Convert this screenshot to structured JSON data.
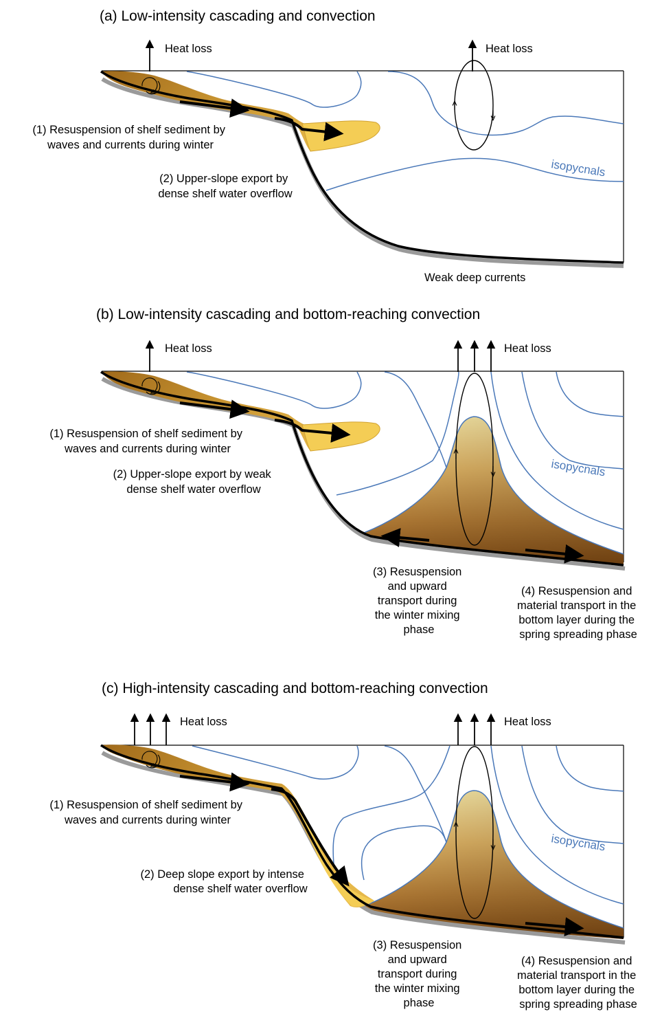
{
  "panels": [
    {
      "title": "(a) Low-intensity cascading and convection",
      "heat_loss_left": "Heat loss",
      "heat_loss_right": "Heat loss",
      "isopycnals": "isopycnals",
      "label1": [
        "(1) Resuspension of shelf sediment by",
        "waves and currents during winter"
      ],
      "label2": [
        "(2) Upper-slope export by",
        "dense shelf water overflow"
      ],
      "label_deep": "Weak deep currents"
    },
    {
      "title": "(b) Low-intensity cascading and bottom-reaching convection",
      "heat_loss_left": "Heat loss",
      "heat_loss_right": "Heat loss",
      "isopycnals": "isopycnals",
      "label1": [
        "(1) Resuspension of shelf sediment by",
        "waves and currents during winter"
      ],
      "label2": [
        "(2) Upper-slope export by weak",
        "dense shelf water overflow"
      ],
      "label3": [
        "(3) Resuspension",
        "and upward",
        "transport during",
        "the winter mixing",
        "phase"
      ],
      "label4": [
        "(4) Resuspension and",
        "material transport in the",
        "bottom layer during the",
        "spring spreading phase"
      ]
    },
    {
      "title": "(c) High-intensity cascading and bottom-reaching convection",
      "heat_loss_left": "Heat loss",
      "heat_loss_right": "Heat loss",
      "isopycnals": "isopycnals",
      "label1": [
        "(1) Resuspension of shelf sediment by",
        "waves and currents during winter"
      ],
      "label2": [
        "(2) Deep slope export by intense",
        "dense shelf water overflow"
      ],
      "label3": [
        "(3) Resuspension",
        "and upward",
        "transport during",
        "the winter mixing",
        "phase"
      ],
      "label4": [
        "(4) Resuspension and",
        "material transport in the",
        "bottom layer during the",
        "spring spreading phase"
      ]
    }
  ],
  "colors": {
    "isopycnal": "#4a78b8",
    "shelf_sediment_dark": "#a8741f",
    "shelf_sediment_light": "#d4a43c",
    "plume": "#f4cd55",
    "nepheloid_dark": "#8a5418",
    "nepheloid_light": "#f9e3a0",
    "seafloor": "#000000",
    "seafloor_shadow": "#9a9a9a"
  }
}
